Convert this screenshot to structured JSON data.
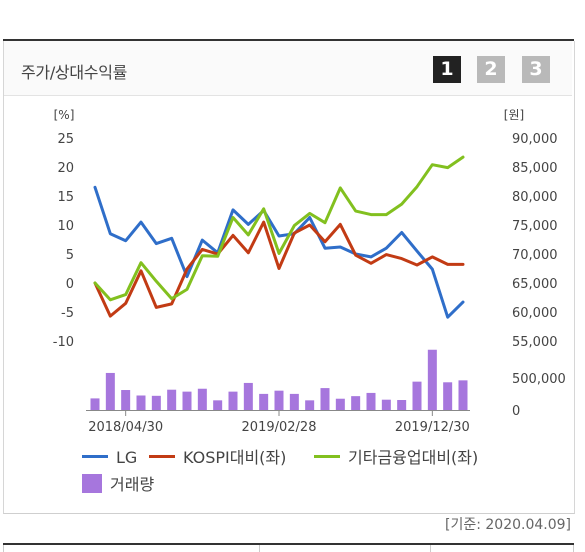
{
  "header": {
    "title": "주가/상대수익률",
    "pages": [
      "1",
      "2",
      "3"
    ],
    "active_page": "1"
  },
  "chart_data": {
    "type": "line",
    "left_axis_unit": "[%]",
    "right_axis_unit": "[원]",
    "left_ylim": [
      -10,
      25
    ],
    "left_ticks": [
      "25",
      "20",
      "15",
      "10",
      "5",
      "0",
      "-5",
      "-10"
    ],
    "right_ylim": [
      55000,
      90000
    ],
    "right_ticks": [
      "90,000",
      "85,000",
      "80,000",
      "75,000",
      "70,000",
      "65,000",
      "60,000",
      "55,000"
    ],
    "volume_ticks": [
      "500,000",
      "0"
    ],
    "volume_ylim": [
      0,
      900000
    ],
    "x_tick_labels": [
      {
        "index": 2,
        "label": "2018/04/30"
      },
      {
        "index": 12,
        "label": "2019/02/28"
      },
      {
        "index": 22,
        "label": "2019/12/30"
      }
    ],
    "series": [
      {
        "name": "LG",
        "color": "#2f6ec9",
        "values": [
          16.5,
          8.5,
          7.3,
          10.5,
          6.8,
          7.7,
          1.1,
          7.4,
          5.2,
          12.6,
          10.1,
          12.5,
          8.1,
          8.5,
          11.3,
          6.0,
          6.2,
          5.0,
          4.5,
          6.0,
          8.7,
          5.5,
          2.4,
          -5.9,
          -3.3
        ]
      },
      {
        "name": "KOSPI대비(좌)",
        "color": "#c23b14",
        "values": [
          0,
          -5.7,
          -3.5,
          2.1,
          -4.2,
          -3.6,
          2.4,
          5.8,
          5.0,
          8.2,
          5.2,
          10.5,
          2.5,
          8.6,
          10.0,
          7.1,
          10.1,
          4.8,
          3.4,
          4.9,
          4.2,
          3.1,
          4.5,
          3.2,
          3.2
        ]
      },
      {
        "name": "기타금융업대비(좌)",
        "color": "#82c01f",
        "values": [
          0,
          -2.9,
          -2.0,
          3.5,
          0.3,
          -2.7,
          -1.1,
          4.7,
          4.6,
          11.3,
          8.3,
          12.8,
          5.1,
          9.9,
          12.0,
          10.4,
          16.4,
          12.4,
          11.8,
          11.8,
          13.6,
          16.6,
          20.4,
          19.9,
          21.7
        ]
      }
    ],
    "volume": {
      "name": "거래량",
      "color": "#a676dd",
      "values": [
        180000,
        575000,
        310000,
        225000,
        220000,
        315000,
        285000,
        330000,
        150000,
        285000,
        420000,
        250000,
        300000,
        250000,
        150000,
        340000,
        175000,
        215000,
        265000,
        160000,
        155000,
        440000,
        935000,
        430000,
        460000
      ]
    }
  },
  "legend": [
    {
      "label": "LG",
      "kind": "line",
      "color": "#2f6ec9"
    },
    {
      "label": "KOSPI대비(좌)",
      "kind": "line",
      "color": "#c23b14"
    },
    {
      "label": "기타금융업대비(좌)",
      "kind": "line",
      "color": "#82c01f"
    },
    {
      "label": "거래량",
      "kind": "box",
      "color": "#a676dd"
    }
  ],
  "footnote": "[기준: 2020.04.09]"
}
